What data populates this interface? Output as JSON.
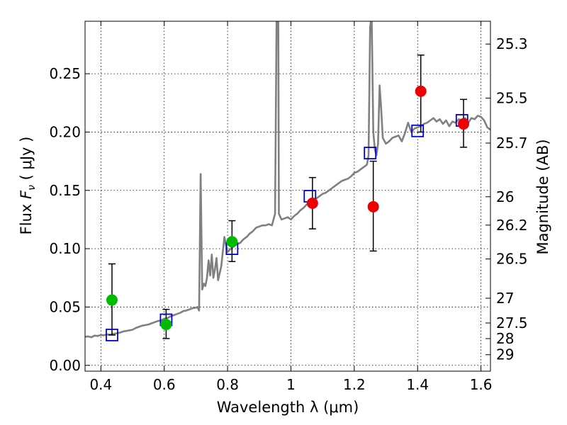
{
  "chart_data": {
    "type": "scatter",
    "xlabel": "Wavelength  λ (μm)",
    "ylabel": "Flux  F_ν  ( μJy )",
    "ylabel_parts": {
      "prefix": "Flux  ",
      "symbol": "F",
      "subscript": "ν",
      "suffix": "  ( μJy )"
    },
    "y2label": "Magnitude (AB)",
    "xlim": [
      0.35,
      1.63
    ],
    "ylim": [
      -0.005,
      0.295
    ],
    "grid": true,
    "x_ticks": [
      0.4,
      0.6,
      0.8,
      1.0,
      1.2,
      1.4,
      1.6
    ],
    "x_tick_labels": [
      "0.4",
      "0.6",
      "0.8",
      "1",
      "1.2",
      "1.4",
      "1.6"
    ],
    "y_ticks": [
      0.0,
      0.05,
      0.1,
      0.15,
      0.2,
      0.25
    ],
    "y_tick_labels": [
      "0.00",
      "0.05",
      "0.10",
      "0.15",
      "0.20",
      "0.25"
    ],
    "y2_ticks": [
      {
        "mag": 25.3,
        "label": "25.3"
      },
      {
        "mag": 25.5,
        "label": "25.5"
      },
      {
        "mag": 25.7,
        "label": "25.7"
      },
      {
        "mag": 26.0,
        "label": "26"
      },
      {
        "mag": 26.2,
        "label": "26.2"
      },
      {
        "mag": 26.5,
        "label": "26.5"
      },
      {
        "mag": 27.0,
        "label": "27"
      },
      {
        "mag": 27.5,
        "label": "27.5"
      },
      {
        "mag": 28.0,
        "label": "28"
      },
      {
        "mag": 29.0,
        "label": "29"
      }
    ],
    "spectrum": {
      "color": "#808080",
      "points": [
        [
          0.35,
          0.0245
        ],
        [
          0.36,
          0.0248
        ],
        [
          0.37,
          0.024
        ],
        [
          0.38,
          0.0255
        ],
        [
          0.39,
          0.0252
        ],
        [
          0.4,
          0.026
        ],
        [
          0.41,
          0.0258
        ],
        [
          0.42,
          0.0265
        ],
        [
          0.43,
          0.0263
        ],
        [
          0.44,
          0.027
        ],
        [
          0.45,
          0.0275
        ],
        [
          0.46,
          0.028
        ],
        [
          0.47,
          0.029
        ],
        [
          0.48,
          0.0295
        ],
        [
          0.49,
          0.03
        ],
        [
          0.5,
          0.0305
        ],
        [
          0.51,
          0.032
        ],
        [
          0.52,
          0.033
        ],
        [
          0.53,
          0.034
        ],
        [
          0.54,
          0.0345
        ],
        [
          0.55,
          0.035
        ],
        [
          0.56,
          0.036
        ],
        [
          0.57,
          0.037
        ],
        [
          0.58,
          0.038
        ],
        [
          0.59,
          0.0385
        ],
        [
          0.6,
          0.04
        ],
        [
          0.61,
          0.0405
        ],
        [
          0.62,
          0.042
        ],
        [
          0.63,
          0.043
        ],
        [
          0.64,
          0.044
        ],
        [
          0.65,
          0.045
        ],
        [
          0.66,
          0.0465
        ],
        [
          0.67,
          0.047
        ],
        [
          0.68,
          0.048
        ],
        [
          0.69,
          0.049
        ],
        [
          0.7,
          0.0495
        ],
        [
          0.705,
          0.05
        ],
        [
          0.71,
          0.047
        ],
        [
          0.715,
          0.164
        ],
        [
          0.72,
          0.065
        ],
        [
          0.725,
          0.07
        ],
        [
          0.73,
          0.068
        ],
        [
          0.735,
          0.075
        ],
        [
          0.74,
          0.09
        ],
        [
          0.745,
          0.077
        ],
        [
          0.75,
          0.095
        ],
        [
          0.755,
          0.075
        ],
        [
          0.76,
          0.082
        ],
        [
          0.765,
          0.092
        ],
        [
          0.77,
          0.073
        ],
        [
          0.78,
          0.085
        ],
        [
          0.79,
          0.11
        ],
        [
          0.8,
          0.097
        ],
        [
          0.81,
          0.1
        ],
        [
          0.82,
          0.102
        ],
        [
          0.83,
          0.104
        ],
        [
          0.84,
          0.105
        ],
        [
          0.85,
          0.108
        ],
        [
          0.86,
          0.11
        ],
        [
          0.87,
          0.113
        ],
        [
          0.88,
          0.115
        ],
        [
          0.89,
          0.118
        ],
        [
          0.9,
          0.119
        ],
        [
          0.91,
          0.12
        ],
        [
          0.92,
          0.12
        ],
        [
          0.93,
          0.121
        ],
        [
          0.94,
          0.12
        ],
        [
          0.945,
          0.125
        ],
        [
          0.95,
          0.13
        ],
        [
          0.955,
          0.31
        ],
        [
          0.96,
          0.31
        ],
        [
          0.962,
          0.13
        ],
        [
          0.97,
          0.125
        ],
        [
          0.98,
          0.126
        ],
        [
          0.99,
          0.127
        ],
        [
          1.0,
          0.125
        ],
        [
          1.01,
          0.128
        ],
        [
          1.02,
          0.13
        ],
        [
          1.03,
          0.133
        ],
        [
          1.04,
          0.135
        ],
        [
          1.05,
          0.138
        ],
        [
          1.06,
          0.14
        ],
        [
          1.07,
          0.142
        ],
        [
          1.08,
          0.143
        ],
        [
          1.09,
          0.145
        ],
        [
          1.1,
          0.147
        ],
        [
          1.11,
          0.148
        ],
        [
          1.12,
          0.15
        ],
        [
          1.13,
          0.152
        ],
        [
          1.14,
          0.154
        ],
        [
          1.15,
          0.156
        ],
        [
          1.16,
          0.158
        ],
        [
          1.17,
          0.159
        ],
        [
          1.18,
          0.16
        ],
        [
          1.19,
          0.162
        ],
        [
          1.2,
          0.165
        ],
        [
          1.21,
          0.166
        ],
        [
          1.22,
          0.168
        ],
        [
          1.23,
          0.17
        ],
        [
          1.24,
          0.172
        ],
        [
          1.245,
          0.18
        ],
        [
          1.25,
          0.29
        ],
        [
          1.255,
          0.3
        ],
        [
          1.26,
          0.2
        ],
        [
          1.265,
          0.185
        ],
        [
          1.27,
          0.18
        ],
        [
          1.275,
          0.19
        ],
        [
          1.28,
          0.24
        ],
        [
          1.285,
          0.22
        ],
        [
          1.29,
          0.195
        ],
        [
          1.3,
          0.19
        ],
        [
          1.31,
          0.192
        ],
        [
          1.32,
          0.195
        ],
        [
          1.33,
          0.196
        ],
        [
          1.34,
          0.197
        ],
        [
          1.35,
          0.192
        ],
        [
          1.36,
          0.199
        ],
        [
          1.37,
          0.208
        ],
        [
          1.38,
          0.2
        ],
        [
          1.39,
          0.203
        ],
        [
          1.4,
          0.204
        ],
        [
          1.41,
          0.205
        ],
        [
          1.42,
          0.207
        ],
        [
          1.43,
          0.208
        ],
        [
          1.44,
          0.21
        ],
        [
          1.45,
          0.212
        ],
        [
          1.46,
          0.209
        ],
        [
          1.47,
          0.211
        ],
        [
          1.48,
          0.207
        ],
        [
          1.49,
          0.21
        ],
        [
          1.5,
          0.205
        ],
        [
          1.51,
          0.209
        ],
        [
          1.52,
          0.208
        ],
        [
          1.53,
          0.211
        ],
        [
          1.54,
          0.21
        ],
        [
          1.55,
          0.212
        ],
        [
          1.56,
          0.208
        ],
        [
          1.57,
          0.212
        ],
        [
          1.58,
          0.211
        ],
        [
          1.59,
          0.214
        ],
        [
          1.6,
          0.213
        ],
        [
          1.61,
          0.21
        ],
        [
          1.62,
          0.204
        ],
        [
          1.63,
          0.202
        ]
      ]
    },
    "model_photometry": {
      "color": "#0000cc",
      "points": [
        [
          0.435,
          0.026
        ],
        [
          0.606,
          0.039
        ],
        [
          0.814,
          0.1
        ],
        [
          1.06,
          0.145
        ],
        [
          1.25,
          0.182
        ],
        [
          1.4,
          0.201
        ],
        [
          1.54,
          0.21
        ]
      ]
    },
    "observed_green": {
      "color": "#00bb00",
      "points": [
        {
          "x": 0.435,
          "y": 0.056,
          "yerr_low": 0.026,
          "yerr_high": 0.087
        },
        {
          "x": 0.606,
          "y": 0.035,
          "yerr_low": 0.023,
          "yerr_high": 0.048
        },
        {
          "x": 0.814,
          "y": 0.106,
          "yerr_low": 0.089,
          "yerr_high": 0.124
        }
      ]
    },
    "observed_red": {
      "color": "#ee0000",
      "points": [
        {
          "x": 1.068,
          "y": 0.139,
          "yerr_low": 0.117,
          "yerr_high": 0.161
        },
        {
          "x": 1.26,
          "y": 0.136,
          "yerr_low": 0.098,
          "yerr_high": 0.175
        },
        {
          "x": 1.41,
          "y": 0.235,
          "yerr_low": 0.2,
          "yerr_high": 0.266
        },
        {
          "x": 1.545,
          "y": 0.207,
          "yerr_low": 0.187,
          "yerr_high": 0.228
        }
      ]
    }
  }
}
